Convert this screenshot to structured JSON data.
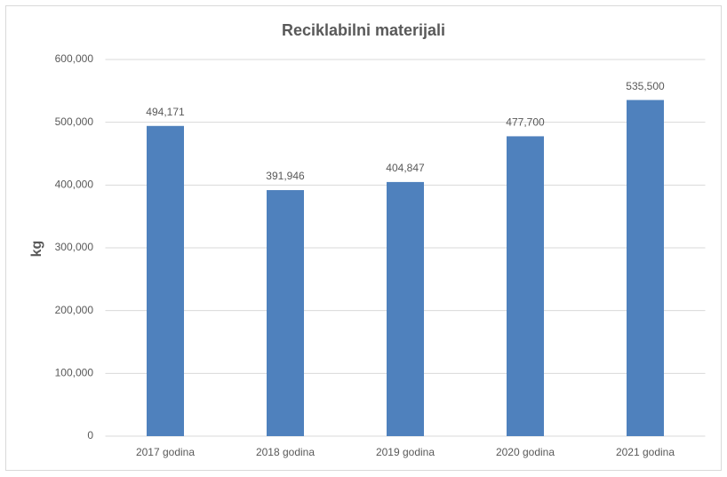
{
  "chart_data": {
    "type": "bar",
    "title": "Reciklabilni materijali",
    "y_label": "kg",
    "categories": [
      "2017 godina",
      "2018 godina",
      "2019 godina",
      "2020 godina",
      "2021 godina"
    ],
    "values": [
      494171,
      391946,
      404847,
      477700,
      535500
    ],
    "value_labels": [
      "494,171",
      "391,946",
      "404,847",
      "477,700",
      "535,500"
    ],
    "color": "#4f81bd",
    "ylim": [
      0,
      600000
    ],
    "yticks": [
      0,
      {
        "value": 100000,
        "label": "100,000"
      },
      {
        "value": 200000,
        "label": "200,000"
      },
      {
        "value": 300000,
        "label": "300,000"
      },
      {
        "value": 400000,
        "label": "400,000"
      },
      {
        "value": 500000,
        "label": "500,000"
      },
      {
        "value": 600000,
        "label": "600,000"
      }
    ],
    "grid": true
  }
}
